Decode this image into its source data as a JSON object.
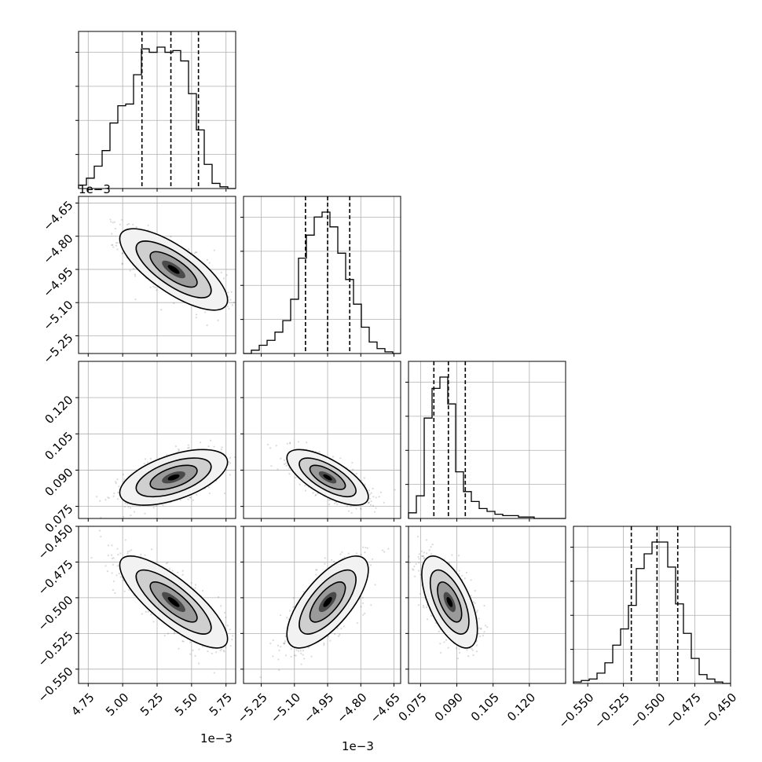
{
  "chart_data": {
    "type": "corner",
    "grid": true,
    "variables": [
      {
        "range": [
          4.68,
          5.82
        ],
        "ticks": [
          4.75,
          5.0,
          5.25,
          5.5,
          5.75
        ],
        "tick_labels": [
          "4.75",
          "5.00",
          "5.25",
          "5.50",
          "5.75"
        ],
        "offset_label": "1e−3",
        "quantiles": [
          5.14,
          5.35,
          5.55
        ],
        "hist": [
          0.02,
          0.06,
          0.13,
          0.22,
          0.38,
          0.48,
          0.49,
          0.66,
          0.81,
          0.79,
          0.82,
          0.79,
          0.8,
          0.74,
          0.55,
          0.34,
          0.14,
          0.03,
          0.01,
          0.0
        ],
        "contour_mean": 5.37,
        "contour_sigma": 0.17
      },
      {
        "range": [
          -5.33,
          -4.62
        ],
        "ticks": [
          -5.25,
          -5.1,
          -4.95,
          -4.8,
          -4.65
        ],
        "tick_labels": [
          "−5.25",
          "−5.10",
          "−4.95",
          "−4.80",
          "−4.65"
        ],
        "offset_label": "1e−3",
        "quantiles": [
          -5.05,
          -4.95,
          -4.85
        ],
        "hist": [
          0.0,
          0.02,
          0.05,
          0.08,
          0.13,
          0.2,
          0.33,
          0.58,
          0.72,
          0.83,
          0.86,
          0.77,
          0.61,
          0.45,
          0.3,
          0.16,
          0.07,
          0.03,
          0.01,
          0.0
        ],
        "contour_mean": -4.95,
        "contour_sigma": 0.08
      },
      {
        "range": [
          0.07,
          0.135
        ],
        "ticks": [
          0.075,
          0.09,
          0.105,
          0.12
        ],
        "tick_labels": [
          "0.075",
          "0.090",
          "0.105",
          "0.120"
        ],
        "offset_label": "",
        "quantiles": [
          0.0805,
          0.0865,
          0.0935
        ],
        "hist": [
          0.04,
          0.16,
          0.71,
          0.92,
          1.0,
          0.81,
          0.33,
          0.19,
          0.12,
          0.07,
          0.05,
          0.03,
          0.02,
          0.02,
          0.01,
          0.01,
          0.0,
          0.0,
          0.0,
          0.0
        ],
        "contour_mean": 0.087,
        "contour_sigma": 0.005
      },
      {
        "range": [
          -0.56,
          -0.45
        ],
        "ticks": [
          -0.55,
          -0.525,
          -0.5,
          -0.475,
          -0.45
        ],
        "tick_labels": [
          "−0.550",
          "−0.525",
          "−0.500",
          "−0.475",
          "−0.450"
        ],
        "offset_label": "",
        "quantiles": [
          -0.5195,
          -0.5015,
          -0.487
        ],
        "hist": [
          0.01,
          0.02,
          0.03,
          0.07,
          0.14,
          0.26,
          0.37,
          0.53,
          0.78,
          0.88,
          0.96,
          0.96,
          0.79,
          0.54,
          0.34,
          0.17,
          0.06,
          0.03,
          0.01,
          0.0
        ],
        "contour_mean": -0.503,
        "contour_sigma": 0.014
      }
    ],
    "pairs": [
      {
        "x": 0,
        "y": 1,
        "correlation": -0.75
      },
      {
        "x": 0,
        "y": 2,
        "correlation": 0.55
      },
      {
        "x": 1,
        "y": 2,
        "correlation": -0.7
      },
      {
        "x": 0,
        "y": 3,
        "correlation": -0.8
      },
      {
        "x": 1,
        "y": 3,
        "correlation": 0.7
      },
      {
        "x": 2,
        "y": 3,
        "correlation": -0.6
      }
    ]
  }
}
